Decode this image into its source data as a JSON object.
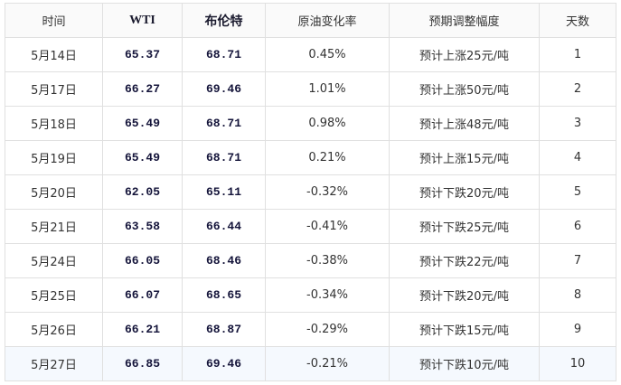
{
  "table": {
    "headers": [
      "时间",
      "WTI",
      "布伦特",
      "原油变化率",
      "预期调整幅度",
      "天数"
    ],
    "rows": [
      [
        "5月14日",
        "65.37",
        "68.71",
        "0.45%",
        "预计上涨25元/吨",
        "1"
      ],
      [
        "5月17日",
        "66.27",
        "69.46",
        "1.01%",
        "预计上涨50元/吨",
        "2"
      ],
      [
        "5月18日",
        "65.49",
        "68.71",
        "0.98%",
        "预计上涨48元/吨",
        "3"
      ],
      [
        "5月19日",
        "65.49",
        "68.71",
        "0.21%",
        "预计上涨15元/吨",
        "4"
      ],
      [
        "5月20日",
        "62.05",
        "65.11",
        "-0.32%",
        "预计下跌20元/吨",
        "5"
      ],
      [
        "5月21日",
        "63.58",
        "66.44",
        "-0.41%",
        "预计下跌25元/吨",
        "6"
      ],
      [
        "5月24日",
        "66.05",
        "68.46",
        "-0.38%",
        "预计下跌22元/吨",
        "7"
      ],
      [
        "5月25日",
        "66.07",
        "68.65",
        "-0.34%",
        "预计下跌20元/吨",
        "8"
      ],
      [
        "5月26日",
        "66.21",
        "68.87",
        "-0.29%",
        "预计下跌15元/吨",
        "9"
      ],
      [
        "5月27日",
        "66.85",
        "69.46",
        "-0.21%",
        "预计下跌10元/吨",
        "10"
      ]
    ],
    "highlighted_row_color": "#f5f9fe"
  }
}
